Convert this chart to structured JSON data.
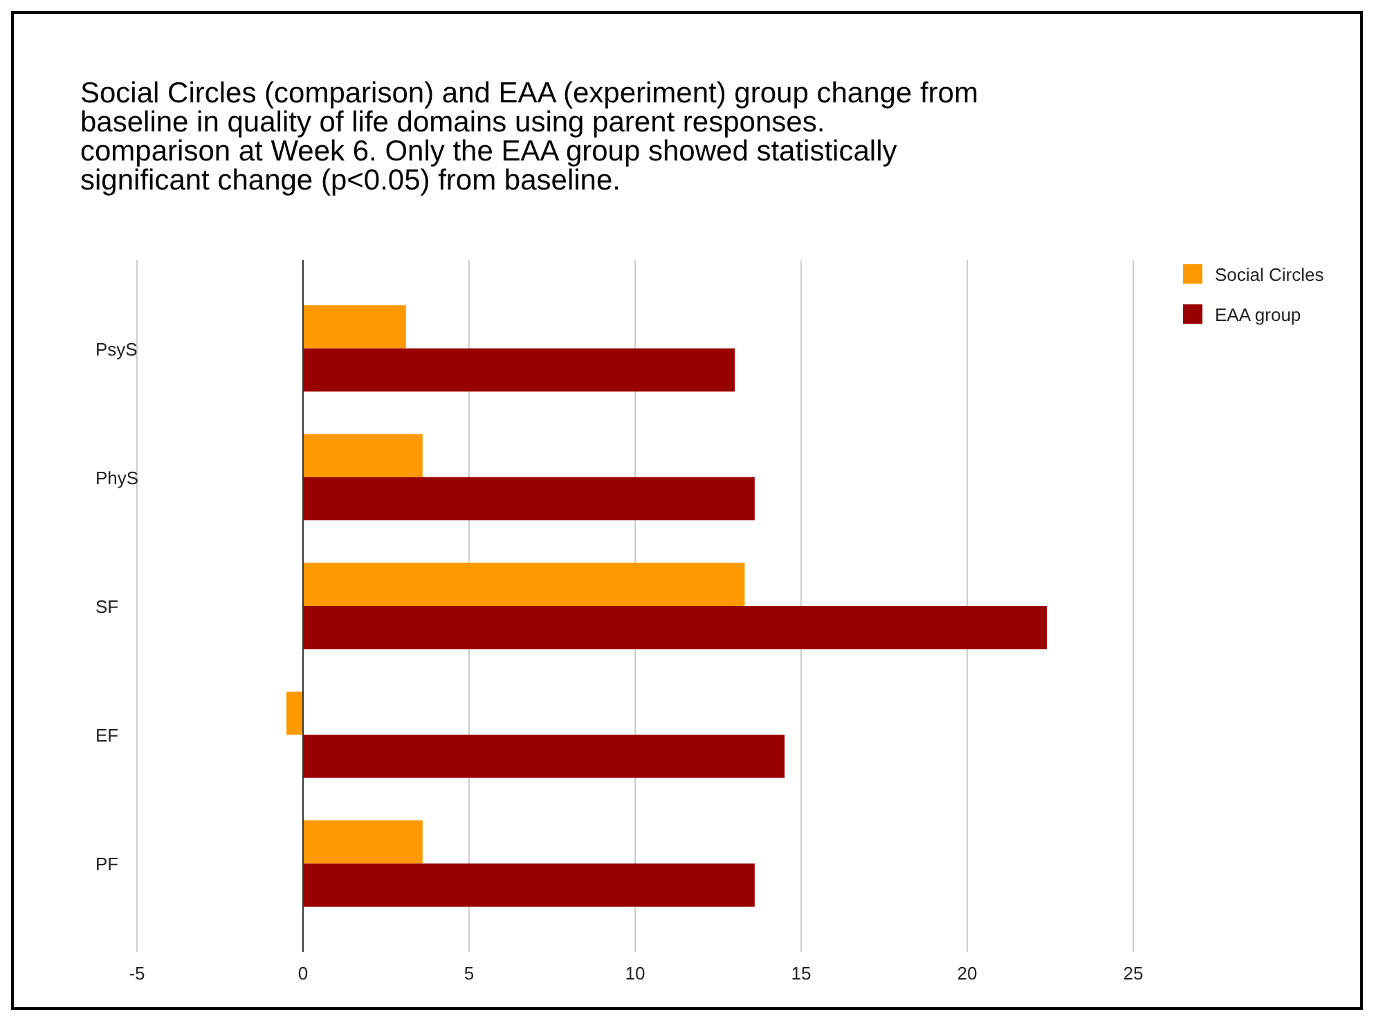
{
  "chart_data": {
    "type": "bar",
    "orientation": "horizontal",
    "title": "Social Circles (comparison) and EAA (experiment) group change from baseline in quality of life domains using parent responses. comparison at Week 6.  Only the EAA group showed statistically significant change (p<0.05) from baseline.",
    "categories": [
      "PsyS",
      "PhyS",
      "SF",
      "EF",
      "PF"
    ],
    "series": [
      {
        "name": "Social Circles",
        "color": "#ff9900",
        "values": [
          3.1,
          3.6,
          13.3,
          -0.5,
          3.6
        ]
      },
      {
        "name": "EAA group",
        "color": "#990000",
        "values": [
          13.0,
          13.6,
          22.4,
          14.5,
          13.6
        ]
      }
    ],
    "xlim": [
      -5,
      25
    ],
    "xticks": [
      -5,
      0,
      5,
      10,
      15,
      20,
      25
    ],
    "grid": "x",
    "legend": "top right"
  }
}
